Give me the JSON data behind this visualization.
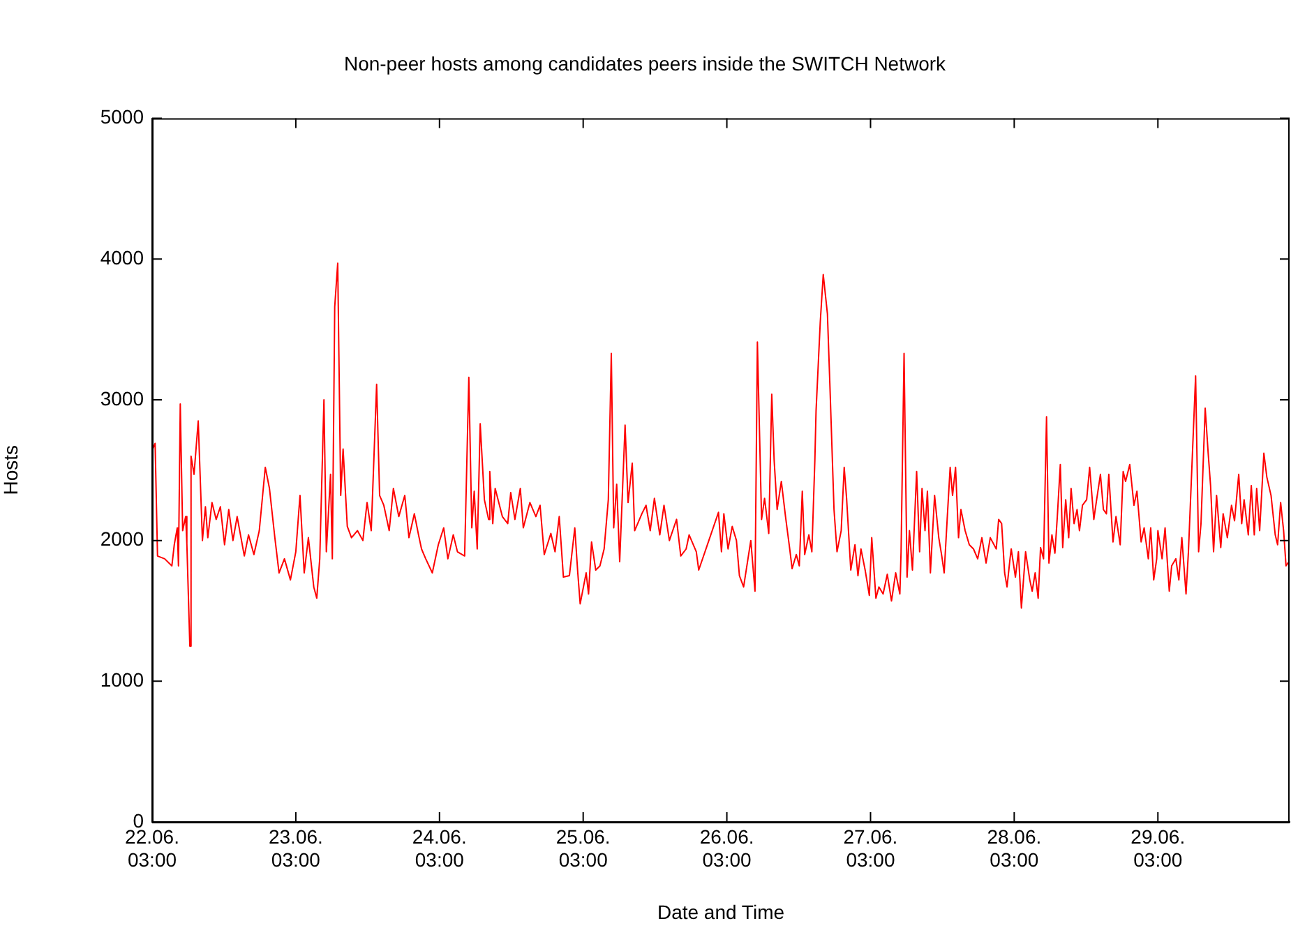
{
  "chart_data": {
    "type": "line",
    "title": "Non-peer hosts among candidates peers inside the SWITCH Network",
    "xlabel": "Date and Time",
    "ylabel": "Hosts",
    "xlim": [
      "--06-22T03:00",
      "--06-30T01:00"
    ],
    "xticks": [
      {
        "value": "--06-22T03:00",
        "label": "22.06.\n03:00"
      },
      {
        "value": "--06-23T03:00",
        "label": "23.06.\n03:00"
      },
      {
        "value": "--06-24T03:00",
        "label": "24.06.\n03:00"
      },
      {
        "value": "--06-25T03:00",
        "label": "25.06.\n03:00"
      },
      {
        "value": "--06-26T03:00",
        "label": "26.06.\n03:00"
      },
      {
        "value": "--06-27T03:00",
        "label": "27.06.\n03:00"
      },
      {
        "value": "--06-28T03:00",
        "label": "28.06.\n03:00"
      },
      {
        "value": "--06-29T03:00",
        "label": "29.06.\n03:00"
      }
    ],
    "ylim": [
      0,
      5000
    ],
    "yticks": [
      0,
      1000,
      2000,
      3000,
      4000,
      5000
    ],
    "grid": false,
    "legend": false,
    "marker": "none",
    "line_style": "solid",
    "series": [
      {
        "color": "#ff0000",
        "x": [
          "--06-22T03:00",
          "--06-22T03:30",
          "--06-22T03:54",
          "--06-22T05:06",
          "--06-22T06:18",
          "--06-22T06:42",
          "--06-22T07:12",
          "--06-22T07:24",
          "--06-22T07:42",
          "--06-22T08:06",
          "--06-22T08:36",
          "--06-22T08:48",
          "--06-22T09:18",
          "--06-22T09:30",
          "--06-22T10:00",
          "--06-22T10:42",
          "--06-22T11:24",
          "--06-22T11:54",
          "--06-22T12:18",
          "--06-22T13:00",
          "--06-22T13:42",
          "--06-22T14:24",
          "--06-22T15:06",
          "--06-22T15:48",
          "--06-22T16:30",
          "--06-22T17:12",
          "--06-22T18:24",
          "--06-22T19:06",
          "--06-22T20:00",
          "--06-22T20:54",
          "--06-22T21:54",
          "--06-22T22:36",
          "--06-22T23:30",
          "--06-23T00:12",
          "--06-23T01:06",
          "--06-23T02:06",
          "--06-23T03:00",
          "--06-23T03:42",
          "--06-23T04:24",
          "--06-23T05:06",
          "--06-23T06:00",
          "--06-23T06:30",
          "--06-23T07:00",
          "--06-23T07:42",
          "--06-23T08:06",
          "--06-23T08:48",
          "--06-23T09:06",
          "--06-23T09:30",
          "--06-23T10:00",
          "--06-23T10:30",
          "--06-23T10:54",
          "--06-23T11:36",
          "--06-23T12:18",
          "--06-23T13:18",
          "--06-23T14:12",
          "--06-23T14:54",
          "--06-23T15:36",
          "--06-23T16:30",
          "--06-23T17:00",
          "--06-23T17:42",
          "--06-23T18:36",
          "--06-23T19:18",
          "--06-23T20:12",
          "--06-23T21:12",
          "--06-23T21:54",
          "--06-23T22:48",
          "--06-23T23:30",
          "--06-24T00:00",
          "--06-24T00:42",
          "--06-24T01:48",
          "--06-24T02:48",
          "--06-24T03:42",
          "--06-24T04:24",
          "--06-24T05:18",
          "--06-24T06:00",
          "--06-24T07:12",
          "--06-24T07:54",
          "--06-24T08:24",
          "--06-24T08:48",
          "--06-24T09:18",
          "--06-24T09:48",
          "--06-24T10:30",
          "--06-24T11:12",
          "--06-24T11:24",
          "--06-24T11:54",
          "--06-24T12:18",
          "--06-24T13:30",
          "--06-24T14:24",
          "--06-24T14:54",
          "--06-24T15:36",
          "--06-24T16:30",
          "--06-24T17:00",
          "--06-24T18:06",
          "--06-24T19:06",
          "--06-24T19:48",
          "--06-24T20:30",
          "--06-24T21:36",
          "--06-24T22:18",
          "--06-24T23:00",
          "--06-24T23:42",
          "--06-25T00:42",
          "--06-25T01:36",
          "--06-25T02:06",
          "--06-25T02:30",
          "--06-25T03:30",
          "--06-25T03:54",
          "--06-25T04:24",
          "--06-25T05:06",
          "--06-25T05:48",
          "--06-25T06:30",
          "--06-25T07:12",
          "--06-25T07:42",
          "--06-25T08:06",
          "--06-25T08:36",
          "--06-25T09:06",
          "--06-25T10:00",
          "--06-25T10:30",
          "--06-25T11:12",
          "--06-25T11:36",
          "--06-25T12:48",
          "--06-25T13:30",
          "--06-25T14:12",
          "--06-25T14:54",
          "--06-25T15:48",
          "--06-25T16:30",
          "--06-25T17:24",
          "--06-25T18:36",
          "--06-25T19:18",
          "--06-25T20:12",
          "--06-25T20:42",
          "--06-25T21:54",
          "--06-25T22:18",
          "--06-26T01:36",
          "--06-26T02:06",
          "--06-26T02:30",
          "--06-26T03:12",
          "--06-26T03:54",
          "--06-26T04:36",
          "--06-26T05:06",
          "--06-26T05:48",
          "--06-26T07:00",
          "--06-26T07:42",
          "--06-26T08:06",
          "--06-26T08:48",
          "--06-26T09:18",
          "--06-26T10:00",
          "--06-26T10:30",
          "--06-26T10:54",
          "--06-26T11:24",
          "--06-26T12:06",
          "--06-26T12:48",
          "--06-26T13:30",
          "--06-26T13:54",
          "--06-26T14:36",
          "--06-26T15:06",
          "--06-26T15:36",
          "--06-26T16:00",
          "--06-26T16:42",
          "--06-26T17:12",
          "--06-26T17:42",
          "--06-26T17:54",
          "--06-26T18:36",
          "--06-26T19:06",
          "--06-26T19:48",
          "--06-26T20:12",
          "--06-26T20:54",
          "--06-26T21:24",
          "--06-26T22:06",
          "--06-26T22:36",
          "--06-26T23:00",
          "--06-26T23:42",
          "--06-27T00:24",
          "--06-27T00:54",
          "--06-27T01:24",
          "--06-27T02:06",
          "--06-27T02:48",
          "--06-27T03:12",
          "--06-27T03:54",
          "--06-27T04:24",
          "--06-27T05:06",
          "--06-27T05:48",
          "--06-27T06:30",
          "--06-27T07:12",
          "--06-27T07:54",
          "--06-27T08:06",
          "--06-27T08:36",
          "--06-27T09:06",
          "--06-27T09:30",
          "--06-27T10:00",
          "--06-27T10:42",
          "--06-27T11:12",
          "--06-27T11:36",
          "--06-27T12:06",
          "--06-27T12:30",
          "--06-27T13:00",
          "--06-27T13:42",
          "--06-27T14:24",
          "--06-27T14:54",
          "--06-27T15:18",
          "--06-27T15:48",
          "--06-27T16:18",
          "--06-27T16:42",
          "--06-27T17:12",
          "--06-27T17:42",
          "--06-27T18:06",
          "--06-27T18:48",
          "--06-27T19:30",
          "--06-27T20:12",
          "--06-27T20:54",
          "--06-27T21:36",
          "--06-27T22:18",
          "--06-27T23:00",
          "--06-28T00:00",
          "--06-28T00:24",
          "--06-28T00:54",
          "--06-28T01:24",
          "--06-28T01:48",
          "--06-28T02:18",
          "--06-28T02:30",
          "--06-28T03:12",
          "--06-28T03:42",
          "--06-28T04:12",
          "--06-28T04:54",
          "--06-28T05:36",
          "--06-28T06:00",
          "--06-28T06:30",
          "--06-28T07:00",
          "--06-28T07:24",
          "--06-28T07:54",
          "--06-28T08:24",
          "--06-28T08:48",
          "--06-28T09:18",
          "--06-28T09:48",
          "--06-28T10:12",
          "--06-28T10:42",
          "--06-28T11:06",
          "--06-28T11:36",
          "--06-28T12:06",
          "--06-28T12:30",
          "--06-28T13:00",
          "--06-28T13:30",
          "--06-28T13:54",
          "--06-28T14:24",
          "--06-28T15:06",
          "--06-28T15:36",
          "--06-28T16:18",
          "--06-28T16:42",
          "--06-28T17:24",
          "--06-28T17:54",
          "--06-28T18:24",
          "--06-28T18:48",
          "--06-28T19:30",
          "--06-28T20:00",
          "--06-28T20:42",
          "--06-28T21:12",
          "--06-28T21:36",
          "--06-28T22:18",
          "--06-28T23:00",
          "--06-28T23:30",
          "--06-29T00:12",
          "--06-29T00:42",
          "--06-29T01:24",
          "--06-29T01:48",
          "--06-29T02:18",
          "--06-29T02:48",
          "--06-29T03:00",
          "--06-29T03:42",
          "--06-29T04:12",
          "--06-29T04:54",
          "--06-29T05:18",
          "--06-29T06:00",
          "--06-29T06:30",
          "--06-29T07:00",
          "--06-29T07:42",
          "--06-29T08:06",
          "--06-29T09:18",
          "--06-29T09:48",
          "--06-29T10:12",
          "--06-29T10:54",
          "--06-29T11:24",
          "--06-29T11:48",
          "--06-29T12:18",
          "--06-29T12:48",
          "--06-29T13:30",
          "--06-29T13:54",
          "--06-29T14:36",
          "--06-29T15:18",
          "--06-29T15:48",
          "--06-29T16:30",
          "--06-29T17:00",
          "--06-29T17:24",
          "--06-29T18:06",
          "--06-29T18:36",
          "--06-29T19:06",
          "--06-29T19:30",
          "--06-29T20:00",
          "--06-29T20:42",
          "--06-29T21:12",
          "--06-29T21:54",
          "--06-29T22:36",
          "--06-29T23:00",
          "--06-29T23:30",
          "--06-30T00:00",
          "--06-30T00:24",
          "--06-30T00:54"
        ],
        "values": [
          2640,
          2690,
          1890,
          1870,
          1820,
          1970,
          2090,
          1820,
          2970,
          2070,
          2170,
          1980,
          1250,
          2600,
          2470,
          2850,
          2000,
          2240,
          2020,
          2270,
          2150,
          2240,
          1970,
          2220,
          2000,
          2170,
          1890,
          2040,
          1900,
          2070,
          2520,
          2370,
          2020,
          1770,
          1870,
          1720,
          1920,
          2320,
          1770,
          2020,
          1670,
          1590,
          1870,
          3000,
          1920,
          2470,
          1870,
          3660,
          3970,
          2320,
          2650,
          2100,
          2020,
          2070,
          2000,
          2270,
          2070,
          3110,
          2320,
          2250,
          2070,
          2370,
          2170,
          2320,
          2020,
          2190,
          2040,
          1940,
          1870,
          1770,
          1970,
          2090,
          1870,
          2040,
          1920,
          1890,
          3160,
          2090,
          2350,
          1940,
          2830,
          2290,
          2150,
          2490,
          2120,
          2370,
          2170,
          2120,
          2340,
          2150,
          2370,
          2090,
          2270,
          2170,
          2250,
          1900,
          2050,
          1920,
          2170,
          1740,
          1750,
          2090,
          1770,
          1550,
          1770,
          1620,
          1990,
          1790,
          1820,
          1940,
          2290,
          3330,
          2090,
          2400,
          1850,
          2820,
          2270,
          2550,
          2070,
          2190,
          2250,
          2070,
          2300,
          2040,
          2250,
          2000,
          2150,
          1890,
          1940,
          2040,
          1920,
          1790,
          2200,
          1920,
          2190,
          1940,
          2100,
          2000,
          1750,
          1670,
          2000,
          1640,
          3410,
          2150,
          2300,
          2050,
          3040,
          2570,
          2220,
          2420,
          2170,
          1940,
          1800,
          1900,
          1820,
          2350,
          1900,
          2040,
          1920,
          2570,
          2920,
          3550,
          3890,
          3610,
          3120,
          2220,
          1920,
          2070,
          2520,
          2300,
          1790,
          1970,
          1750,
          1940,
          1790,
          1610,
          2020,
          1590,
          1670,
          1620,
          1760,
          1570,
          1770,
          1620,
          1920,
          3330,
          1740,
          2070,
          1790,
          2490,
          1920,
          2370,
          2070,
          2350,
          1770,
          2320,
          2020,
          1890,
          1770,
          2150,
          2520,
          2320,
          2520,
          2020,
          2220,
          2070,
          1970,
          1940,
          1870,
          2020,
          1840,
          2020,
          1940,
          2150,
          2120,
          1770,
          1670,
          1870,
          1940,
          1740,
          1920,
          1520,
          1920,
          1720,
          1640,
          1770,
          1590,
          1950,
          1870,
          2880,
          1840,
          2040,
          1910,
          2170,
          2540,
          1950,
          2290,
          2020,
          2370,
          2120,
          2220,
          2070,
          2250,
          2290,
          2520,
          2150,
          2270,
          2470,
          2220,
          2190,
          2470,
          1990,
          2170,
          1970,
          2490,
          2420,
          2540,
          2250,
          2350,
          1990,
          2090,
          1870,
          2090,
          1720,
          1870,
          2070,
          1870,
          2090,
          1640,
          1820,
          1870,
          1720,
          2020,
          1620,
          1920,
          3170,
          1920,
          2120,
          2940,
          2620,
          2390,
          1920,
          2320,
          1950,
          2190,
          2020,
          2250,
          2140,
          2470,
          2120,
          2290,
          2040,
          2390,
          2040,
          2370,
          2070,
          2620,
          2450,
          2320,
          2040,
          1970,
          2270,
          2070,
          1820,
          1850
        ]
      }
    ]
  }
}
